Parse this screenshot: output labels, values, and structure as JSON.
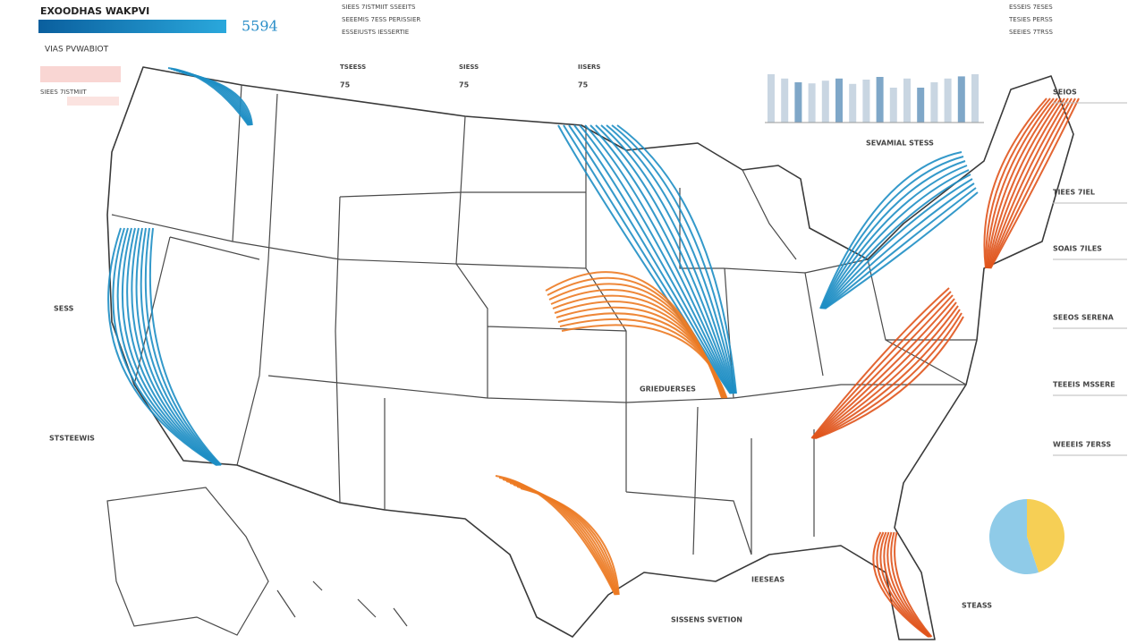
{
  "header": {
    "title": "EXOODHAS WAKPVI",
    "stat": "5594",
    "subtitle": "VIAS PVWABIOT",
    "note": "SIEES 7ISTMIIT"
  },
  "top_notes": [
    "SIEES 7ISTMIIT SSEEITS",
    "SEEEMIS 7ESS PERISSIER",
    "ESSEIUSTS IESSERTIE"
  ],
  "stat_blocks": [
    {
      "label": "TSEESS",
      "value": "75"
    },
    {
      "label": "SIESS",
      "value": "75"
    },
    {
      "label": "IISERS",
      "value": "75"
    }
  ],
  "mini_bars": {
    "title": "SEVAMIAL STESS",
    "values": [
      90,
      82,
      75,
      73,
      78,
      82,
      72,
      80,
      85,
      65,
      82,
      65,
      75,
      82,
      86,
      90
    ],
    "colors": [
      "#c9d6e2",
      "#7fa7c8"
    ]
  },
  "right_list": [
    "ESSEIS 7ESES",
    "TESIES PERSS",
    "SEEIES 7TRSS"
  ],
  "callouts": [
    "SEIOS",
    "TIEES 7IEL",
    "SOAIS 7ILES",
    "SEEOS SERENA",
    "TEEEIS MSSERE",
    "WEEEIS 7ERSS"
  ],
  "map_labels": [
    "SESS",
    "STSTEEWIS",
    "GRIEDUERSES",
    "IEESEAS",
    "SISSENS SVETION",
    "STEASS"
  ],
  "flow_colors": {
    "west": "#1e8ec4",
    "east": "#e0541c",
    "south": "#ec7a22"
  },
  "pie": {
    "values": [
      45,
      55
    ],
    "colors": [
      "#f6cf55",
      "#8fcbe8"
    ]
  }
}
